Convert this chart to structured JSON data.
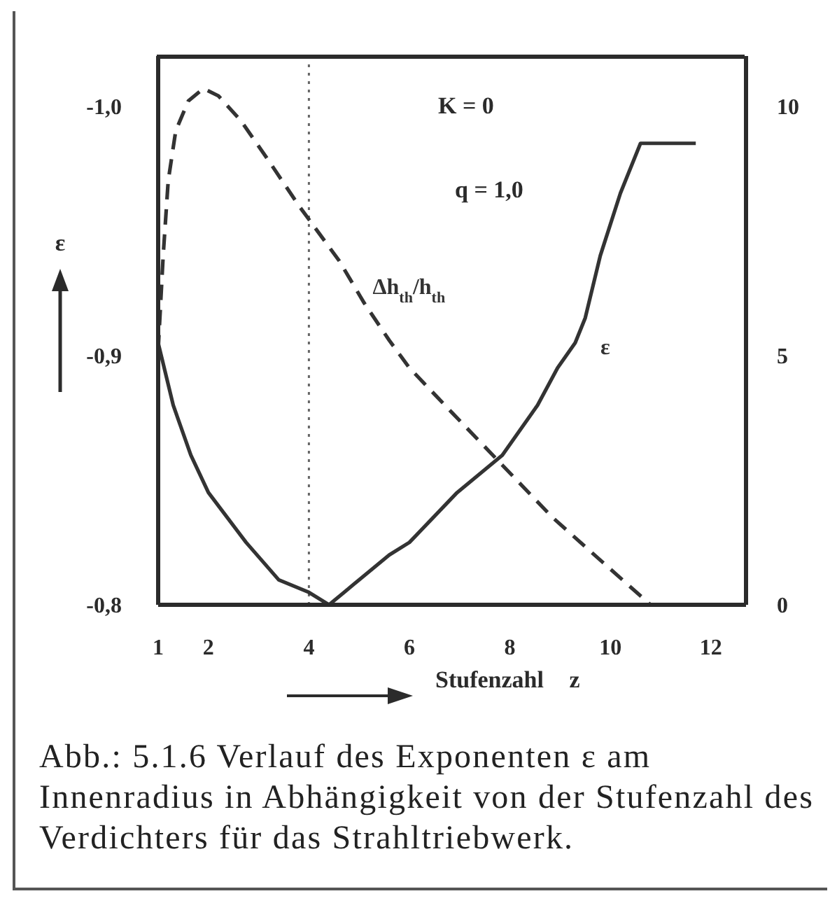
{
  "chart_data": {
    "type": "line",
    "xlabel": "Stufenzahl z",
    "ylabel": "ε",
    "annotations": [
      "K = 0",
      "q = 1,0",
      "Abb.: 5.1.6 Verlauf des Exponenten ε am Innenradius in Abhängigkeit von der Stufenzahl des Verdichters für das Strahltriebwerk."
    ],
    "xlim": [
      1,
      12.7
    ],
    "xticks": [
      1,
      2,
      4,
      6,
      8,
      10,
      12
    ],
    "ylim": [
      -0.8,
      -1.02
    ],
    "yticks": [
      {
        "value": -0.8,
        "label": "-0,8"
      },
      {
        "value": -0.9,
        "label": "-0,9"
      },
      {
        "value": -1.0,
        "label": "-1,0"
      }
    ],
    "y2lim": [
      0,
      11
    ],
    "y2ticks": [
      0,
      5,
      10
    ],
    "marker": "none",
    "line_style": "solid",
    "series": [
      {
        "name": "ε",
        "color": "#333333",
        "x": [
          1.0,
          1.3,
          1.65,
          2.0,
          2.75,
          3.4,
          4.0,
          4.4,
          4.7,
          5.6,
          6.0,
          6.95,
          7.85,
          8.55,
          8.95,
          9.3,
          9.5,
          9.8,
          10.2,
          10.6,
          11.7
        ],
        "values": [
          -0.905,
          -0.88,
          -0.86,
          -0.845,
          -0.825,
          -0.81,
          -0.805,
          -0.8,
          -0.805,
          -0.82,
          -0.825,
          -0.845,
          -0.86,
          -0.88,
          -0.895,
          -0.905,
          -0.915,
          -0.94,
          -0.965,
          -0.985,
          -0.985
        ]
      },
      {
        "name": "Δh$_{th}$/h$_{th}$",
        "color": "#333333",
        "axis": "y2",
        "line_style": "dashed",
        "x": [
          1.0,
          1.1,
          1.2,
          1.35,
          1.6,
          1.9,
          2.2,
          2.65,
          3.2,
          3.8,
          4.6,
          5.1,
          5.6,
          6.0,
          6.85,
          7.85,
          8.85,
          9.85,
          10.8
        ],
        "values": [
          5.1,
          7.0,
          8.5,
          9.5,
          10.1,
          10.35,
          10.2,
          9.7,
          8.9,
          8.0,
          6.9,
          6.05,
          5.3,
          4.75,
          3.85,
          2.8,
          1.75,
          0.85,
          0
        ]
      }
    ],
    "ref_lines": [
      {
        "axis": "x",
        "value": 4,
        "line_style": "dotted",
        "color": "#666666"
      }
    ]
  }
}
